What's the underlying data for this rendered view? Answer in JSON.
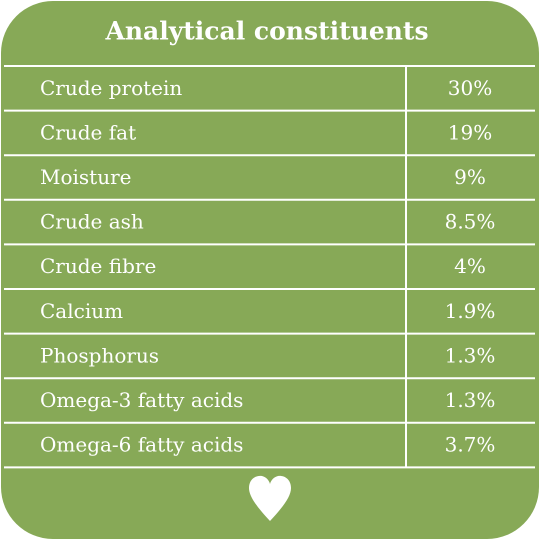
{
  "header": {
    "title": "Analytical constituents"
  },
  "table": {
    "rows": [
      [
        "Crude protein",
        "30%"
      ],
      [
        "Crude fat",
        "19%"
      ],
      [
        "Moisture",
        "9%"
      ],
      [
        "Crude ash",
        "8.5%"
      ],
      [
        "Crude fibre",
        "4%"
      ],
      [
        "Calcium",
        "1.9%"
      ],
      [
        "Phosphorus",
        "1.3%"
      ],
      [
        "Omega-3 fatty acids",
        "1.3%"
      ],
      [
        "Omega-6 fatty acids",
        "3.7%"
      ]
    ]
  }
}
